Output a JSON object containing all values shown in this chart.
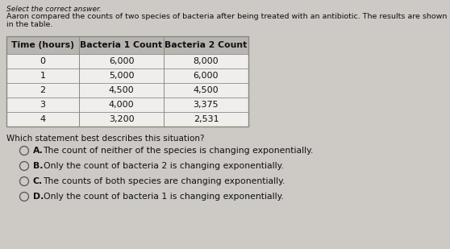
{
  "title_top": "Select the correct answer.",
  "intro_text": "Aaron compared the counts of two species of bacteria after being treated with an antibiotic. The results are shown in the table.",
  "table_headers": [
    "Time (hours)",
    "Bacteria 1 Count",
    "Bacteria 2 Count"
  ],
  "table_rows": [
    [
      "0",
      "6,000",
      "8,000"
    ],
    [
      "1",
      "5,000",
      "6,000"
    ],
    [
      "2",
      "4,500",
      "4,500"
    ],
    [
      "3",
      "4,000",
      "3,375"
    ],
    [
      "4",
      "3,200",
      "2,531"
    ]
  ],
  "question_text": "Which statement best describes this situation?",
  "choices": [
    {
      "label": "A.",
      "text": "The count of neither of the species is changing exponentially."
    },
    {
      "label": "B.",
      "text": "Only the count of bacteria 2 is changing exponentially."
    },
    {
      "label": "C.",
      "text": "The counts of both species are changing exponentially."
    },
    {
      "label": "D.",
      "text": "Only the count of bacteria 1 is changing exponentially."
    }
  ],
  "background_color": "#cdc9c4",
  "table_bg_color": "#f0eeec",
  "table_header_bg": "#b8b4b0",
  "table_border_color": "#888880",
  "text_color": "#111111",
  "font_size_intro": 6.8,
  "font_size_table_header": 7.8,
  "font_size_table_data": 8.0,
  "font_size_question": 7.5,
  "font_size_choices": 7.8,
  "font_size_top": 6.5
}
